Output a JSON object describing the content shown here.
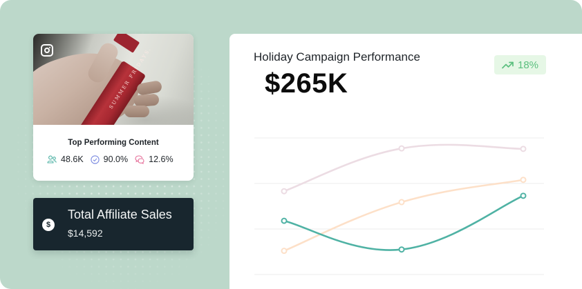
{
  "colors": {
    "background": "#bcd8ca",
    "dark_card": "#18262e",
    "trend_badge_bg": "#e6f7e6",
    "trend_badge_fg": "#5bbf7e",
    "series_pink": "#ecdce3",
    "series_orange": "#fde0c8",
    "series_teal": "#4fb2a4"
  },
  "content_card": {
    "platform_icon": "instagram-icon",
    "photo_brand_text": "SUMMER FRIDAYS.",
    "title": "Top Performing Content",
    "stats": [
      {
        "icon": "users-icon",
        "value": "48.6K",
        "color": "#4fb2a4"
      },
      {
        "icon": "check-circle-icon",
        "value": "90.0%",
        "color": "#7b8ae0"
      },
      {
        "icon": "chat-bubbles-icon",
        "value": "12.6%",
        "color": "#e6709a"
      }
    ]
  },
  "affiliate_card": {
    "icon": "dollar-icon",
    "icon_glyph": "$",
    "title": "Total Affiliate Sales",
    "value": "$14,592"
  },
  "panel": {
    "title": "Holiday Campaign Performance",
    "value": "$265K",
    "trend": {
      "icon": "trending-up-icon",
      "label": "18%"
    }
  },
  "chart_data": {
    "type": "line",
    "title": "Holiday Campaign Performance",
    "xlabel": "",
    "ylabel": "",
    "x": [
      1,
      2,
      3
    ],
    "ylim": [
      0,
      3
    ],
    "grid": true,
    "gridlines_y": [
      0,
      1,
      2,
      3
    ],
    "legend": "none",
    "series": [
      {
        "name": "pink",
        "color": "#ecdce3",
        "values": [
          1.83,
          2.77,
          2.76
        ]
      },
      {
        "name": "orange",
        "color": "#fde0c8",
        "values": [
          0.52,
          1.59,
          2.08
        ]
      },
      {
        "name": "teal",
        "color": "#4fb2a4",
        "values": [
          1.18,
          0.55,
          1.73
        ]
      }
    ]
  }
}
